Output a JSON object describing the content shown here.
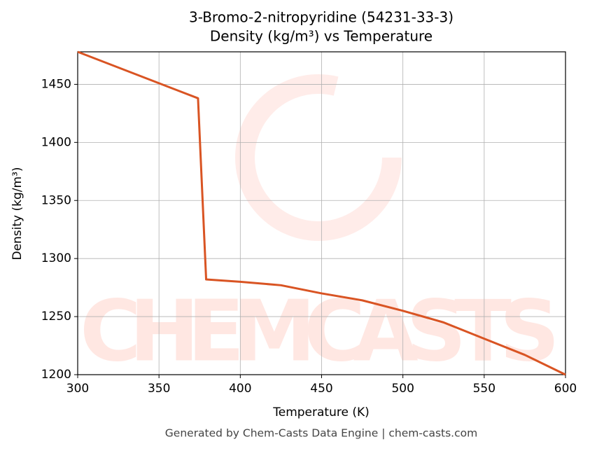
{
  "chart_data": {
    "type": "line",
    "title": "3-Bromo-2-nitropyridine (54231-33-3)",
    "subtitle": "Density (kg/m³) vs Temperature",
    "x_label": "Temperature (K)",
    "y_label": "Density (kg/m³)",
    "watermark": "CHEMCASTS",
    "footer": "Generated by Chem-Casts Data Engine | chem-casts.com",
    "x": [
      300,
      374,
      379,
      400,
      425,
      450,
      475,
      500,
      525,
      550,
      575,
      600
    ],
    "series": [
      {
        "name": "Density",
        "color": "#d95423",
        "values": [
          1478,
          1438,
          1282,
          1280,
          1277,
          1270,
          1264,
          1255,
          1245,
          1231,
          1217,
          1200
        ]
      }
    ],
    "xlim": [
      300,
      600
    ],
    "xticks": [
      300,
      350,
      400,
      450,
      500,
      550,
      600
    ],
    "ylim": [
      1200,
      1478
    ],
    "yticks": [
      1200,
      1250,
      1300,
      1350,
      1400,
      1450
    ],
    "grid": true
  }
}
